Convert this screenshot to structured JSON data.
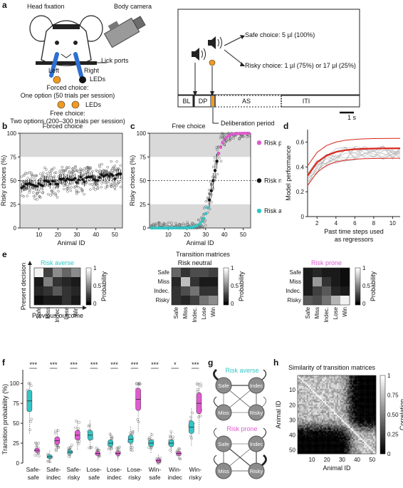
{
  "panels": [
    "a",
    "b",
    "c",
    "d",
    "e",
    "f",
    "g",
    "h"
  ],
  "a": {
    "head_fixation": "Head fixation",
    "body_camera": "Body camera",
    "lick_ports": "Lick ports",
    "left": "Left",
    "right": "Right",
    "leds_1": "LEDs",
    "forced_title": "Forced choice:",
    "forced_desc": "One option (50 trials per session)",
    "leds_2": "LEDs",
    "free_title": "Free choice:",
    "free_desc": "Two options (200–300 trials per session)",
    "safe_choice": "Safe choice: 5 µl (100%)",
    "risky_choice": "Risky choice: 1 µl (75%) or 17 µl (25%)",
    "epochs": [
      "BL",
      "DP",
      "AS",
      "ITI"
    ],
    "scale_bar": "1 s",
    "deliberation": "Deliberation period",
    "colors": {
      "orange": "#f29a1f",
      "cyan": "#33c6c6",
      "magenta": "#e05ad0",
      "red": "#d9261c"
    }
  },
  "b": {
    "title": "Forced choice",
    "ylabel": "Risky choices (%)",
    "xlabel": "Animal ID",
    "yticks": [
      "0",
      "25",
      "50",
      "75",
      "100"
    ],
    "xticks": [
      "10",
      "20",
      "30",
      "40",
      "50"
    ]
  },
  "c": {
    "title": "Free choice",
    "ylabel": "Risky choices (%)",
    "xlabel": "Animal ID",
    "yticks": [
      "0",
      "25",
      "50",
      "75",
      "100"
    ],
    "xticks": [
      "10",
      "20",
      "30",
      "40",
      "50"
    ],
    "legend": [
      "Risk prone",
      "Risk neutral",
      "Risk averse"
    ]
  },
  "d": {
    "ylabel": "Model performance",
    "xlabel_1": "Past time steps used",
    "xlabel_2": "as regressors",
    "yticks": [
      "0",
      "0.2",
      "0.4",
      "0.6"
    ],
    "xticks": [
      "2",
      "4",
      "6",
      "8",
      "10"
    ]
  },
  "e": {
    "title": "Transition matrices",
    "ylabel": "Present decision",
    "xlabel": "Previous outcome",
    "rows": [
      "Safe",
      "Miss",
      "Indec.",
      "Risky"
    ],
    "cols": [
      "Safe",
      "Miss",
      "Indec.",
      "Lose",
      "Win"
    ],
    "cbar_label": "Probability",
    "cbar_ticks": [
      "1",
      "0.5",
      "0"
    ],
    "matrices": [
      {
        "name": "Risk averse",
        "values": [
          [
            0.95,
            0.25,
            0.55,
            0.4,
            0.55
          ],
          [
            0.1,
            0.5,
            0.2,
            0.15,
            0.1
          ],
          [
            0.15,
            0.2,
            0.35,
            0.2,
            0.15
          ],
          [
            0.05,
            0.1,
            0.1,
            0.2,
            0.1
          ]
        ]
      },
      {
        "name": "Risk neutral",
        "values": [
          [
            0.4,
            0.2,
            0.3,
            0.3,
            0.25
          ],
          [
            0.15,
            0.75,
            0.2,
            0.1,
            0.1
          ],
          [
            0.2,
            0.3,
            0.45,
            0.2,
            0.2
          ],
          [
            0.2,
            0.15,
            0.25,
            0.45,
            0.55
          ]
        ]
      },
      {
        "name": "Risk prone",
        "values": [
          [
            0.1,
            0.15,
            0.1,
            0.1,
            0.05
          ],
          [
            0.1,
            0.6,
            0.2,
            0.1,
            0.05
          ],
          [
            0.1,
            0.25,
            0.35,
            0.15,
            0.1
          ],
          [
            0.35,
            0.3,
            0.45,
            0.7,
            0.95
          ]
        ]
      }
    ]
  },
  "f": {
    "ylabel": "Transition probability (%)",
    "yticks": [
      "0",
      "25",
      "50",
      "75",
      "100"
    ],
    "groups": [
      {
        "l1": "Safe-",
        "l2": "safe",
        "sig": "***",
        "averse": 78,
        "prone": 16
      },
      {
        "l1": "Safe-",
        "l2": "indec",
        "sig": "***",
        "averse": 8,
        "prone": 28
      },
      {
        "l1": "Safe-",
        "l2": "risky",
        "sig": "***",
        "averse": 14,
        "prone": 35
      },
      {
        "l1": "Lose-",
        "l2": "safe",
        "sig": "***",
        "averse": 35,
        "prone": 12
      },
      {
        "l1": "Lose-",
        "l2": "indec",
        "sig": "***",
        "averse": 25,
        "prone": 12
      },
      {
        "l1": "Lose-",
        "l2": "risky",
        "sig": "***",
        "averse": 30,
        "prone": 80
      },
      {
        "l1": "Win-",
        "l2": "safe",
        "sig": "***",
        "averse": 25,
        "prone": 3
      },
      {
        "l1": "Win-",
        "l2": "indec",
        "sig": "*",
        "averse": 25,
        "prone": 12
      },
      {
        "l1": "Win-",
        "l2": "risky",
        "sig": "***",
        "averse": 45,
        "prone": 75
      }
    ]
  },
  "g": {
    "averse": "Risk averse",
    "prone": "Risk prone",
    "nodes": [
      "Safe",
      "Indec",
      "Miss",
      "Risky"
    ]
  },
  "h": {
    "title": "Similarity of transition matrices",
    "ylabel": "Animal ID",
    "xlabel": "Animal ID",
    "yticks": [
      "10",
      "20",
      "30",
      "40",
      "50"
    ],
    "xticks": [
      "10",
      "20",
      "30",
      "40",
      "50"
    ],
    "cbar_label": "Correlation",
    "cbar_ticks": [
      "1",
      "0.75",
      "0.50",
      "0.25",
      "0"
    ]
  }
}
